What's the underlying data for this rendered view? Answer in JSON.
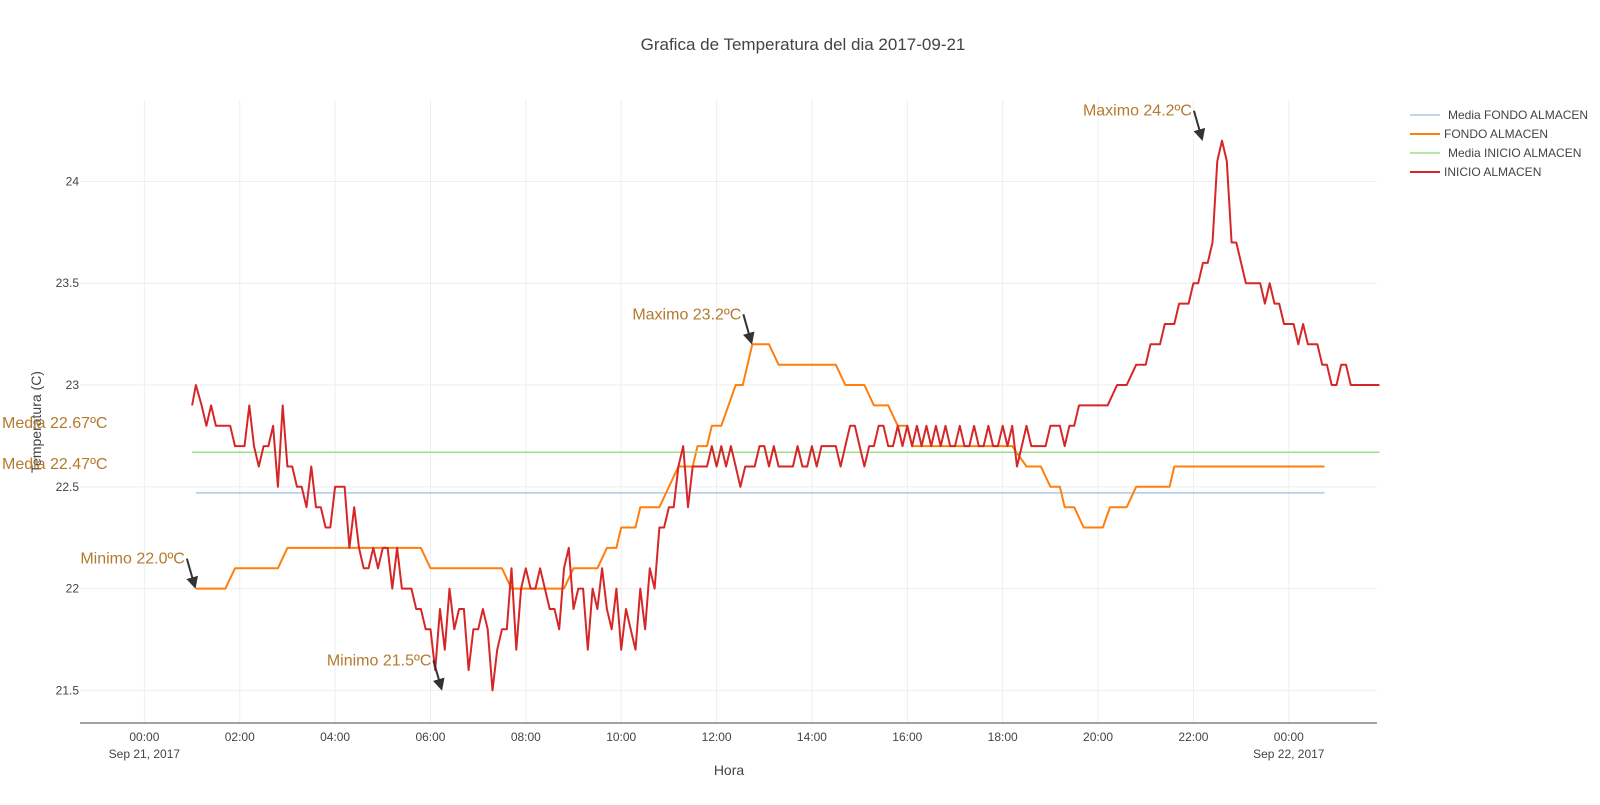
{
  "chart_data": {
    "type": "line",
    "title": "Grafica de Temperatura del dia 2017-09-21",
    "xlabel": "Hora",
    "ylabel": "Temperatura (C)",
    "x_ticks": [
      {
        "h": 0,
        "label": "00:00",
        "sub": "Sep 21, 2017"
      },
      {
        "h": 2,
        "label": "02:00"
      },
      {
        "h": 4,
        "label": "04:00"
      },
      {
        "h": 6,
        "label": "06:00"
      },
      {
        "h": 8,
        "label": "08:00"
      },
      {
        "h": 10,
        "label": "10:00"
      },
      {
        "h": 12,
        "label": "12:00"
      },
      {
        "h": 14,
        "label": "14:00"
      },
      {
        "h": 16,
        "label": "16:00"
      },
      {
        "h": 18,
        "label": "18:00"
      },
      {
        "h": 20,
        "label": "20:00"
      },
      {
        "h": 22,
        "label": "22:00"
      },
      {
        "h": 24,
        "label": "00:00",
        "sub": "Sep 22, 2017"
      }
    ],
    "y_ticks": [
      21.5,
      22,
      22.5,
      23,
      23.5,
      24
    ],
    "xlim": [
      -1.35,
      25.85
    ],
    "ylim": [
      21.34,
      24.4
    ],
    "grid": true,
    "legend_position": "top-right",
    "series": [
      {
        "name": "Media FONDO ALMACEN",
        "color": "#aec7e8",
        "width": 1.5,
        "points": [
          [
            1.08,
            22.47
          ],
          [
            24.75,
            22.47
          ]
        ]
      },
      {
        "name": "FONDO ALMACEN",
        "color": "#ff7f0e",
        "width": 2,
        "points": [
          [
            1.08,
            22.0
          ],
          [
            1.7,
            22.0
          ],
          [
            1.9,
            22.1
          ],
          [
            2.8,
            22.1
          ],
          [
            3.0,
            22.2
          ],
          [
            5.8,
            22.2
          ],
          [
            6.0,
            22.1
          ],
          [
            7.5,
            22.1
          ],
          [
            7.7,
            22.0
          ],
          [
            8.8,
            22.0
          ],
          [
            9.0,
            22.1
          ],
          [
            9.5,
            22.1
          ],
          [
            9.7,
            22.2
          ],
          [
            9.9,
            22.2
          ],
          [
            10.0,
            22.3
          ],
          [
            10.3,
            22.3
          ],
          [
            10.4,
            22.4
          ],
          [
            10.8,
            22.4
          ],
          [
            11.2,
            22.6
          ],
          [
            11.5,
            22.6
          ],
          [
            11.6,
            22.7
          ],
          [
            11.8,
            22.7
          ],
          [
            11.9,
            22.8
          ],
          [
            12.1,
            22.8
          ],
          [
            12.4,
            23.0
          ],
          [
            12.55,
            23.0
          ],
          [
            12.75,
            23.2
          ],
          [
            13.1,
            23.2
          ],
          [
            13.3,
            23.1
          ],
          [
            14.5,
            23.1
          ],
          [
            14.7,
            23.0
          ],
          [
            15.1,
            23.0
          ],
          [
            15.3,
            22.9
          ],
          [
            15.6,
            22.9
          ],
          [
            15.8,
            22.8
          ],
          [
            16.0,
            22.8
          ],
          [
            16.1,
            22.7
          ],
          [
            18.2,
            22.7
          ],
          [
            18.5,
            22.6
          ],
          [
            18.8,
            22.6
          ],
          [
            19.0,
            22.5
          ],
          [
            19.2,
            22.5
          ],
          [
            19.3,
            22.4
          ],
          [
            19.5,
            22.4
          ],
          [
            19.7,
            22.3
          ],
          [
            20.1,
            22.3
          ],
          [
            20.25,
            22.4
          ],
          [
            20.6,
            22.4
          ],
          [
            20.8,
            22.5
          ],
          [
            21.5,
            22.5
          ],
          [
            21.6,
            22.6
          ],
          [
            24.75,
            22.6
          ]
        ]
      },
      {
        "name": "Media INICIO ALMACEN",
        "color": "#98df8a",
        "width": 1.5,
        "points": [
          [
            1.0,
            22.67
          ],
          [
            25.9,
            22.67
          ]
        ]
      },
      {
        "name": "INICIO ALMACEN",
        "color": "#d62728",
        "width": 2,
        "points": [
          [
            1.0,
            22.9
          ],
          [
            1.08,
            23.0
          ],
          [
            1.2,
            22.9
          ],
          [
            1.3,
            22.8
          ],
          [
            1.4,
            22.9
          ],
          [
            1.5,
            22.8
          ],
          [
            1.8,
            22.8
          ],
          [
            1.9,
            22.7
          ],
          [
            2.0,
            22.7
          ],
          [
            2.1,
            22.7
          ],
          [
            2.2,
            22.9
          ],
          [
            2.3,
            22.7
          ],
          [
            2.4,
            22.6
          ],
          [
            2.5,
            22.7
          ],
          [
            2.6,
            22.7
          ],
          [
            2.7,
            22.8
          ],
          [
            2.8,
            22.5
          ],
          [
            2.9,
            22.9
          ],
          [
            3.0,
            22.6
          ],
          [
            3.1,
            22.6
          ],
          [
            3.2,
            22.5
          ],
          [
            3.3,
            22.5
          ],
          [
            3.4,
            22.4
          ],
          [
            3.5,
            22.6
          ],
          [
            3.6,
            22.4
          ],
          [
            3.7,
            22.4
          ],
          [
            3.8,
            22.3
          ],
          [
            3.9,
            22.3
          ],
          [
            4.0,
            22.5
          ],
          [
            4.2,
            22.5
          ],
          [
            4.3,
            22.2
          ],
          [
            4.4,
            22.4
          ],
          [
            4.5,
            22.2
          ],
          [
            4.6,
            22.1
          ],
          [
            4.7,
            22.1
          ],
          [
            4.8,
            22.2
          ],
          [
            4.9,
            22.1
          ],
          [
            5.0,
            22.2
          ],
          [
            5.1,
            22.2
          ],
          [
            5.2,
            22.0
          ],
          [
            5.3,
            22.2
          ],
          [
            5.4,
            22.0
          ],
          [
            5.6,
            22.0
          ],
          [
            5.7,
            21.9
          ],
          [
            5.8,
            21.9
          ],
          [
            5.9,
            21.8
          ],
          [
            6.0,
            21.8
          ],
          [
            6.1,
            21.6
          ],
          [
            6.2,
            21.9
          ],
          [
            6.3,
            21.7
          ],
          [
            6.4,
            22.0
          ],
          [
            6.5,
            21.8
          ],
          [
            6.6,
            21.9
          ],
          [
            6.7,
            21.9
          ],
          [
            6.8,
            21.6
          ],
          [
            6.9,
            21.8
          ],
          [
            7.0,
            21.8
          ],
          [
            7.1,
            21.9
          ],
          [
            7.2,
            21.8
          ],
          [
            7.3,
            21.5
          ],
          [
            7.4,
            21.7
          ],
          [
            7.5,
            21.8
          ],
          [
            7.6,
            21.8
          ],
          [
            7.7,
            22.1
          ],
          [
            7.8,
            21.7
          ],
          [
            7.9,
            22.0
          ],
          [
            8.0,
            22.1
          ],
          [
            8.1,
            22.0
          ],
          [
            8.2,
            22.0
          ],
          [
            8.3,
            22.1
          ],
          [
            8.4,
            22.0
          ],
          [
            8.5,
            21.9
          ],
          [
            8.6,
            21.9
          ],
          [
            8.7,
            21.8
          ],
          [
            8.8,
            22.1
          ],
          [
            8.9,
            22.2
          ],
          [
            9.0,
            21.9
          ],
          [
            9.1,
            22.0
          ],
          [
            9.2,
            22.0
          ],
          [
            9.3,
            21.7
          ],
          [
            9.4,
            22.0
          ],
          [
            9.5,
            21.9
          ],
          [
            9.6,
            22.1
          ],
          [
            9.7,
            21.9
          ],
          [
            9.8,
            21.8
          ],
          [
            9.9,
            22.0
          ],
          [
            10.0,
            21.7
          ],
          [
            10.1,
            21.9
          ],
          [
            10.2,
            21.8
          ],
          [
            10.3,
            21.7
          ],
          [
            10.4,
            22.0
          ],
          [
            10.5,
            21.8
          ],
          [
            10.6,
            22.1
          ],
          [
            10.7,
            22.0
          ],
          [
            10.8,
            22.3
          ],
          [
            10.9,
            22.3
          ],
          [
            11.0,
            22.4
          ],
          [
            11.1,
            22.4
          ],
          [
            11.2,
            22.6
          ],
          [
            11.3,
            22.7
          ],
          [
            11.4,
            22.4
          ],
          [
            11.5,
            22.6
          ],
          [
            11.6,
            22.6
          ],
          [
            11.7,
            22.6
          ],
          [
            11.8,
            22.6
          ],
          [
            11.9,
            22.7
          ],
          [
            12.0,
            22.6
          ],
          [
            12.1,
            22.7
          ],
          [
            12.2,
            22.6
          ],
          [
            12.3,
            22.7
          ],
          [
            12.4,
            22.6
          ],
          [
            12.5,
            22.5
          ],
          [
            12.6,
            22.6
          ],
          [
            12.7,
            22.6
          ],
          [
            12.8,
            22.6
          ],
          [
            12.9,
            22.7
          ],
          [
            13.0,
            22.7
          ],
          [
            13.1,
            22.6
          ],
          [
            13.2,
            22.7
          ],
          [
            13.3,
            22.6
          ],
          [
            13.4,
            22.6
          ],
          [
            13.5,
            22.6
          ],
          [
            13.6,
            22.6
          ],
          [
            13.7,
            22.7
          ],
          [
            13.8,
            22.6
          ],
          [
            13.9,
            22.6
          ],
          [
            14.0,
            22.7
          ],
          [
            14.1,
            22.6
          ],
          [
            14.2,
            22.7
          ],
          [
            14.3,
            22.7
          ],
          [
            14.4,
            22.7
          ],
          [
            14.5,
            22.7
          ],
          [
            14.6,
            22.6
          ],
          [
            14.7,
            22.7
          ],
          [
            14.8,
            22.8
          ],
          [
            14.9,
            22.8
          ],
          [
            15.0,
            22.7
          ],
          [
            15.1,
            22.6
          ],
          [
            15.2,
            22.7
          ],
          [
            15.3,
            22.7
          ],
          [
            15.4,
            22.8
          ],
          [
            15.5,
            22.8
          ],
          [
            15.6,
            22.7
          ],
          [
            15.7,
            22.7
          ],
          [
            15.8,
            22.8
          ],
          [
            15.9,
            22.7
          ],
          [
            16.0,
            22.8
          ],
          [
            16.1,
            22.7
          ],
          [
            16.2,
            22.8
          ],
          [
            16.3,
            22.7
          ],
          [
            16.4,
            22.8
          ],
          [
            16.5,
            22.7
          ],
          [
            16.6,
            22.8
          ],
          [
            16.7,
            22.7
          ],
          [
            16.8,
            22.8
          ],
          [
            16.9,
            22.7
          ],
          [
            17.0,
            22.7
          ],
          [
            17.1,
            22.8
          ],
          [
            17.2,
            22.7
          ],
          [
            17.3,
            22.7
          ],
          [
            17.4,
            22.8
          ],
          [
            17.5,
            22.7
          ],
          [
            17.6,
            22.7
          ],
          [
            17.7,
            22.8
          ],
          [
            17.8,
            22.7
          ],
          [
            17.9,
            22.7
          ],
          [
            18.0,
            22.8
          ],
          [
            18.1,
            22.7
          ],
          [
            18.2,
            22.8
          ],
          [
            18.3,
            22.6
          ],
          [
            18.4,
            22.7
          ],
          [
            18.5,
            22.8
          ],
          [
            18.6,
            22.7
          ],
          [
            18.7,
            22.7
          ],
          [
            18.8,
            22.7
          ],
          [
            18.9,
            22.7
          ],
          [
            19.0,
            22.8
          ],
          [
            19.1,
            22.8
          ],
          [
            19.2,
            22.8
          ],
          [
            19.3,
            22.7
          ],
          [
            19.4,
            22.8
          ],
          [
            19.5,
            22.8
          ],
          [
            19.6,
            22.9
          ],
          [
            19.8,
            22.9
          ],
          [
            20.0,
            22.9
          ],
          [
            20.2,
            22.9
          ],
          [
            20.4,
            23.0
          ],
          [
            20.6,
            23.0
          ],
          [
            20.8,
            23.1
          ],
          [
            21.0,
            23.1
          ],
          [
            21.1,
            23.2
          ],
          [
            21.3,
            23.2
          ],
          [
            21.4,
            23.3
          ],
          [
            21.6,
            23.3
          ],
          [
            21.7,
            23.4
          ],
          [
            21.9,
            23.4
          ],
          [
            22.0,
            23.5
          ],
          [
            22.1,
            23.5
          ],
          [
            22.2,
            23.6
          ],
          [
            22.3,
            23.6
          ],
          [
            22.4,
            23.7
          ],
          [
            22.5,
            24.1
          ],
          [
            22.6,
            24.2
          ],
          [
            22.7,
            24.1
          ],
          [
            22.8,
            23.7
          ],
          [
            22.9,
            23.7
          ],
          [
            23.0,
            23.6
          ],
          [
            23.1,
            23.5
          ],
          [
            23.2,
            23.5
          ],
          [
            23.4,
            23.5
          ],
          [
            23.5,
            23.4
          ],
          [
            23.6,
            23.5
          ],
          [
            23.7,
            23.4
          ],
          [
            23.8,
            23.4
          ],
          [
            23.9,
            23.3
          ],
          [
            24.0,
            23.3
          ],
          [
            24.1,
            23.3
          ],
          [
            24.2,
            23.2
          ],
          [
            24.3,
            23.3
          ],
          [
            24.4,
            23.2
          ],
          [
            24.6,
            23.2
          ],
          [
            24.7,
            23.1
          ],
          [
            24.8,
            23.1
          ],
          [
            24.9,
            23.0
          ],
          [
            25.0,
            23.0
          ],
          [
            25.1,
            23.1
          ],
          [
            25.2,
            23.1
          ],
          [
            25.3,
            23.0
          ],
          [
            25.9,
            23.0
          ]
        ]
      }
    ],
    "annotations": [
      {
        "text": "Maximo 24.2ºC",
        "x": 22.2,
        "y": 24.2,
        "arrow": true
      },
      {
        "text": "Maximo 23.2ºC",
        "x": 12.75,
        "y": 23.2,
        "arrow": true
      },
      {
        "text": "Minimo 22.0ºC",
        "x": 1.08,
        "y": 22.0,
        "arrow": true
      },
      {
        "text": "Minimo 21.5ºC",
        "x": 6.25,
        "y": 21.5,
        "arrow": true
      },
      {
        "text": "Media 22.67ºC",
        "x": 1.0,
        "y": 22.67,
        "arrow": false
      },
      {
        "text": "Media 22.47ºC",
        "x": 1.08,
        "y": 22.47,
        "arrow": false
      }
    ]
  },
  "colors": {
    "annotation": "#b57a2e",
    "arrow": "#333333",
    "grid": "#eeeeee",
    "axis_line": "#444444"
  }
}
